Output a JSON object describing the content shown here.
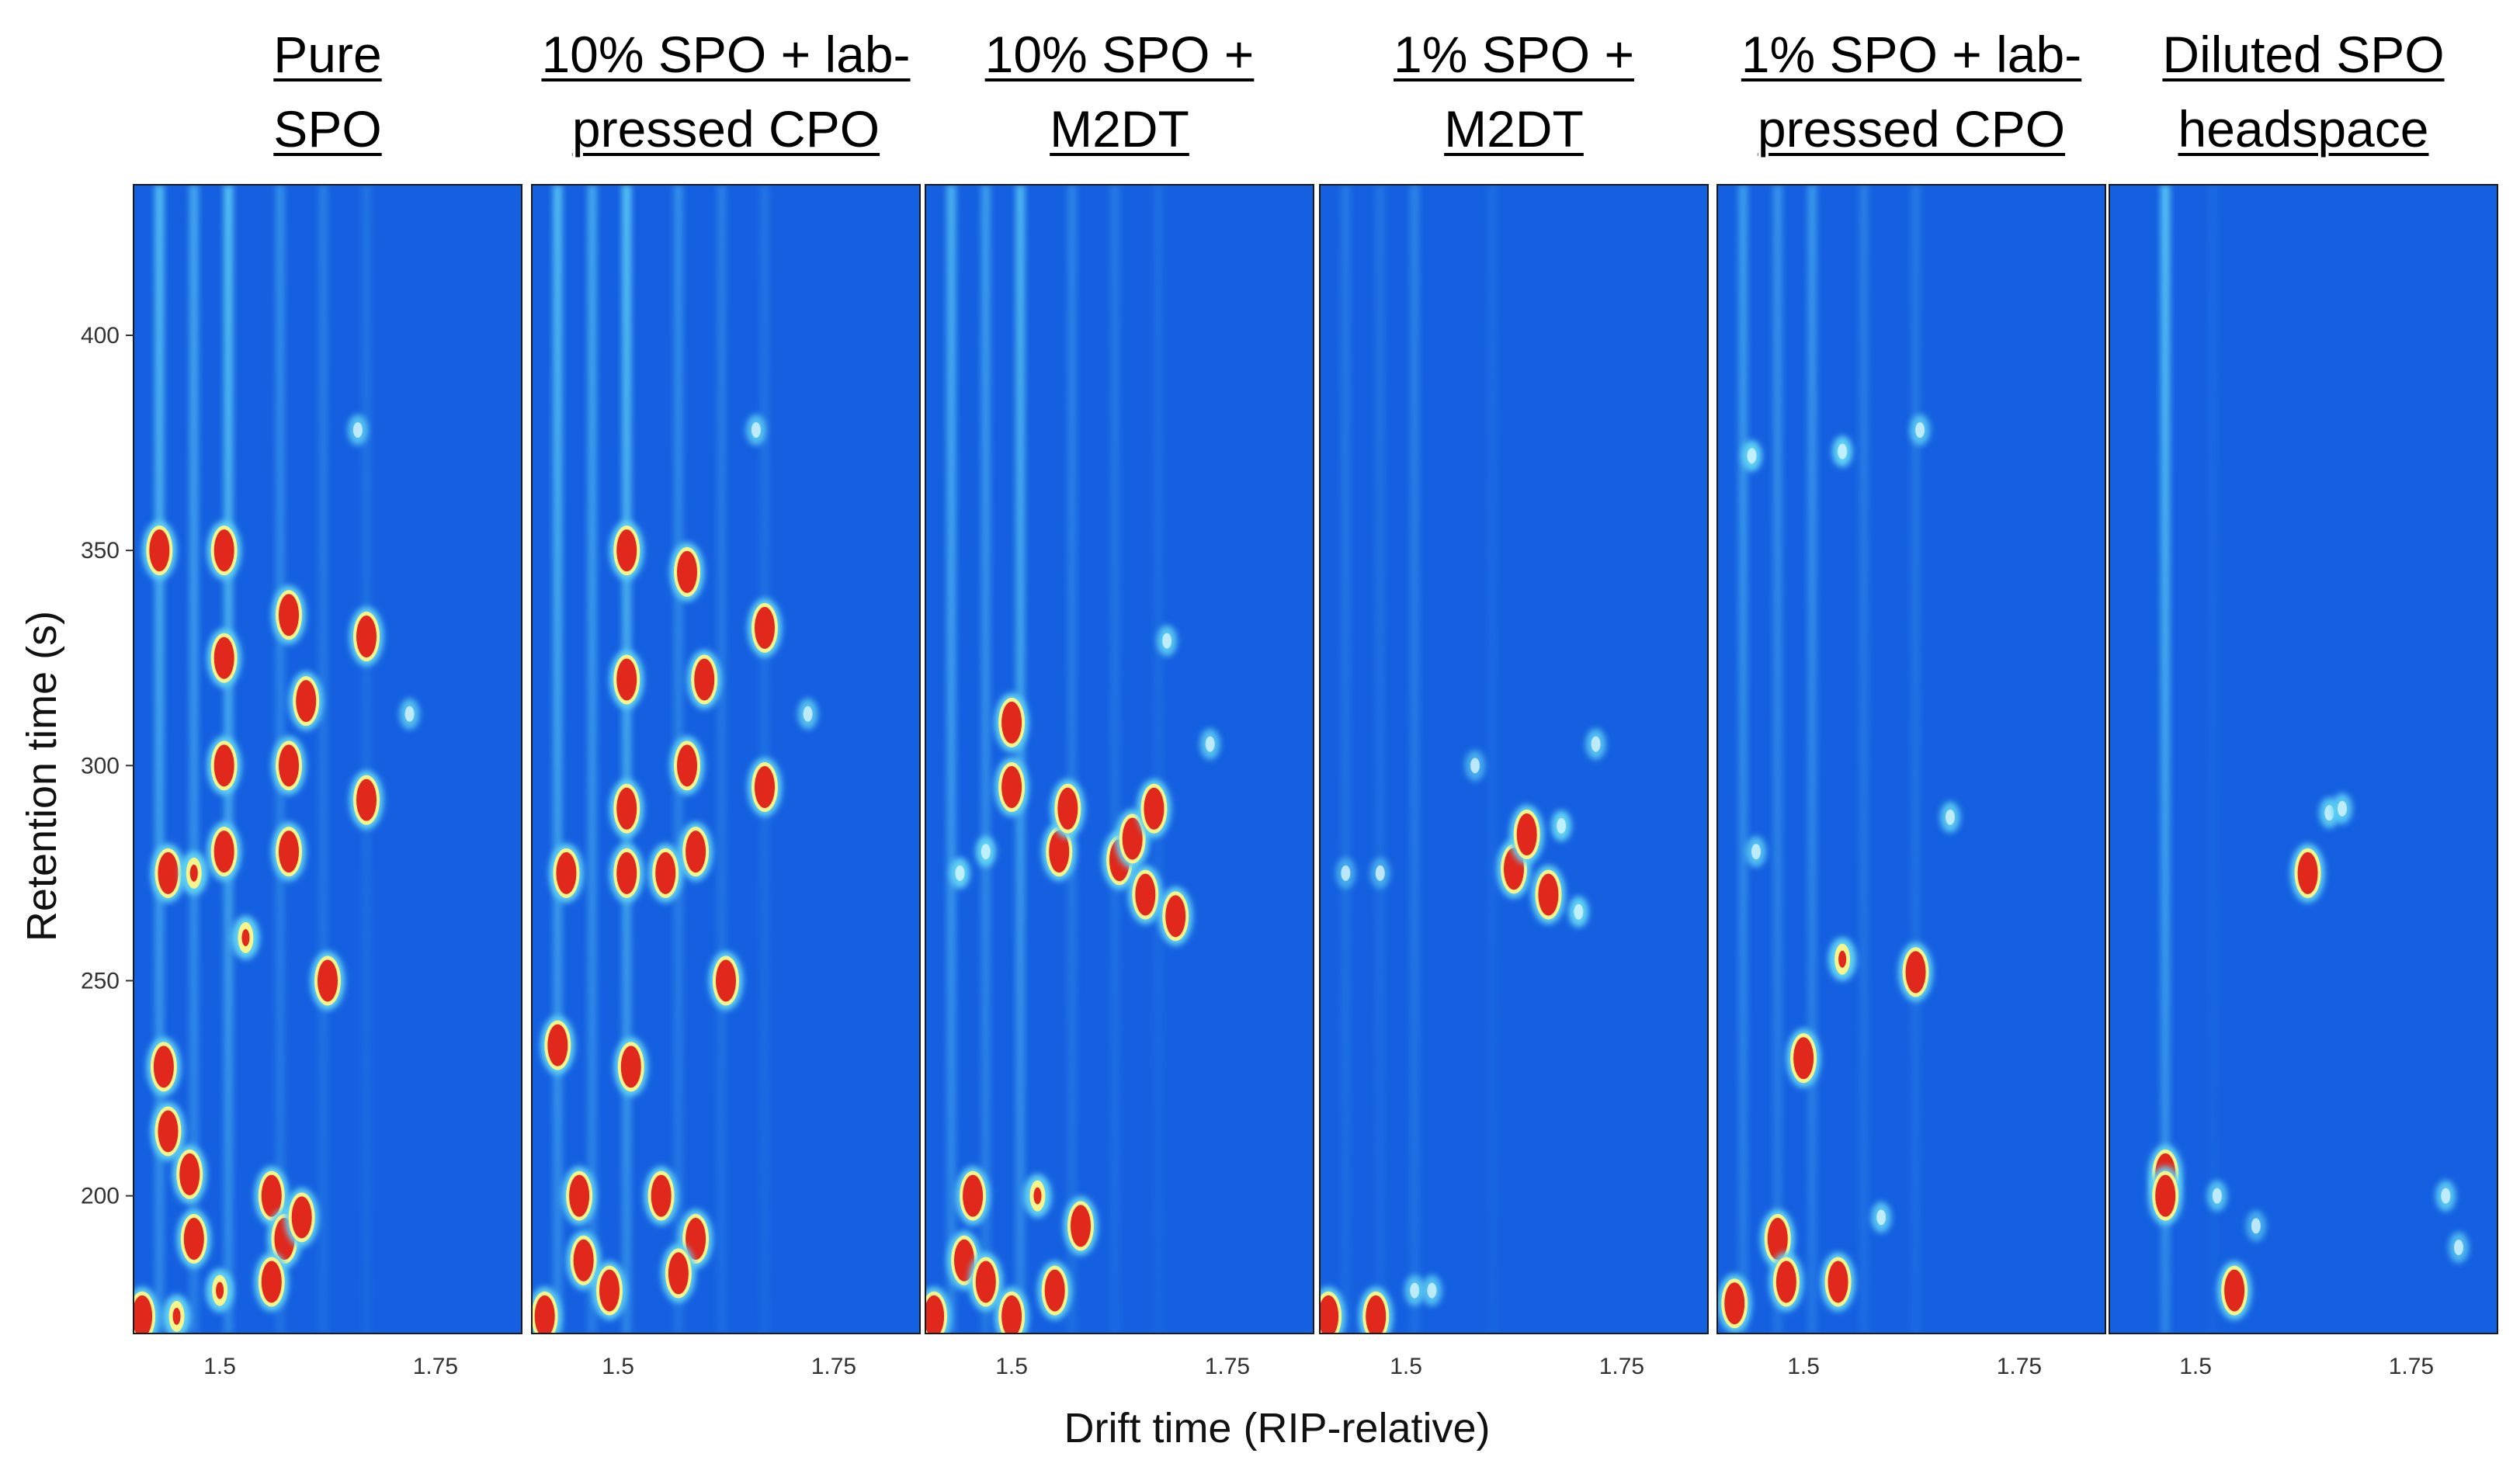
{
  "chart_data": {
    "type": "heatmap",
    "xlabel": "Drift time (RIP-relative)",
    "ylabel": "Retention time (s)",
    "xlim": [
      1.4,
      1.85
    ],
    "ylim": [
      168,
      435
    ],
    "x_ticks": [
      1.5,
      1.75
    ],
    "x_tick_labels": [
      "1.5",
      "1.75"
    ],
    "y_ticks": [
      200,
      250,
      300,
      350,
      400
    ],
    "y_tick_labels": [
      "200",
      "250",
      "300",
      "350",
      "400"
    ],
    "colors": {
      "background": "#1560e0",
      "low": "#5fd2f5",
      "mid": "#f5f58c",
      "high": "#e0281c"
    },
    "panels": [
      {
        "title_lines": [
          "Pure",
          "SPO"
        ],
        "streaks": [
          [
            1.43,
            0.9
          ],
          [
            1.47,
            0.7
          ],
          [
            1.51,
            0.95
          ],
          [
            1.57,
            0.45
          ],
          [
            1.62,
            0.3
          ],
          [
            1.67,
            0.2
          ]
        ],
        "spots": [
          {
            "x": 1.505,
            "y": 300,
            "i": 3
          },
          {
            "x": 1.505,
            "y": 280,
            "i": 3
          },
          {
            "x": 1.505,
            "y": 325,
            "i": 3
          },
          {
            "x": 1.505,
            "y": 350,
            "i": 2.5
          },
          {
            "x": 1.58,
            "y": 300,
            "i": 3
          },
          {
            "x": 1.58,
            "y": 335,
            "i": 3
          },
          {
            "x": 1.58,
            "y": 280,
            "i": 3
          },
          {
            "x": 1.6,
            "y": 315,
            "i": 2.5
          },
          {
            "x": 1.67,
            "y": 330,
            "i": 3
          },
          {
            "x": 1.67,
            "y": 292,
            "i": 3
          },
          {
            "x": 1.72,
            "y": 312,
            "i": 1.5
          },
          {
            "x": 1.66,
            "y": 378,
            "i": 1.5
          },
          {
            "x": 1.44,
            "y": 275,
            "i": 2.5
          },
          {
            "x": 1.47,
            "y": 275,
            "i": 2
          },
          {
            "x": 1.43,
            "y": 350,
            "i": 2.5
          },
          {
            "x": 1.53,
            "y": 260,
            "i": 2
          },
          {
            "x": 1.625,
            "y": 250,
            "i": 2.5
          },
          {
            "x": 1.435,
            "y": 230,
            "i": 3
          },
          {
            "x": 1.44,
            "y": 215,
            "i": 2.5
          },
          {
            "x": 1.465,
            "y": 205,
            "i": 2.5
          },
          {
            "x": 1.47,
            "y": 190,
            "i": 2.5
          },
          {
            "x": 1.56,
            "y": 200,
            "i": 3
          },
          {
            "x": 1.575,
            "y": 190,
            "i": 3
          },
          {
            "x": 1.595,
            "y": 195,
            "i": 3
          },
          {
            "x": 1.56,
            "y": 180,
            "i": 3
          },
          {
            "x": 1.41,
            "y": 172,
            "i": 3
          },
          {
            "x": 1.45,
            "y": 172,
            "i": 2
          },
          {
            "x": 1.5,
            "y": 178,
            "i": 2
          }
        ]
      },
      {
        "title_lines": [
          "10% SPO + lab-",
          "pressed CPO"
        ],
        "streaks": [
          [
            1.43,
            0.9
          ],
          [
            1.47,
            0.7
          ],
          [
            1.51,
            0.95
          ],
          [
            1.57,
            0.45
          ],
          [
            1.62,
            0.3
          ],
          [
            1.67,
            0.2
          ]
        ],
        "spots": [
          {
            "x": 1.51,
            "y": 320,
            "i": 3
          },
          {
            "x": 1.51,
            "y": 290,
            "i": 3
          },
          {
            "x": 1.51,
            "y": 275,
            "i": 3
          },
          {
            "x": 1.51,
            "y": 350,
            "i": 2.5
          },
          {
            "x": 1.515,
            "y": 230,
            "i": 3
          },
          {
            "x": 1.58,
            "y": 300,
            "i": 3
          },
          {
            "x": 1.58,
            "y": 345,
            "i": 3
          },
          {
            "x": 1.59,
            "y": 280,
            "i": 2.5
          },
          {
            "x": 1.6,
            "y": 320,
            "i": 2.5
          },
          {
            "x": 1.67,
            "y": 332,
            "i": 3
          },
          {
            "x": 1.67,
            "y": 295,
            "i": 3
          },
          {
            "x": 1.72,
            "y": 312,
            "i": 1.5
          },
          {
            "x": 1.66,
            "y": 378,
            "i": 1.5
          },
          {
            "x": 1.44,
            "y": 275,
            "i": 2.5
          },
          {
            "x": 1.555,
            "y": 275,
            "i": 2.5
          },
          {
            "x": 1.625,
            "y": 250,
            "i": 2.5
          },
          {
            "x": 1.43,
            "y": 235,
            "i": 2.5
          },
          {
            "x": 1.455,
            "y": 200,
            "i": 3
          },
          {
            "x": 1.46,
            "y": 185,
            "i": 3
          },
          {
            "x": 1.49,
            "y": 178,
            "i": 3
          },
          {
            "x": 1.55,
            "y": 200,
            "i": 2.5
          },
          {
            "x": 1.59,
            "y": 190,
            "i": 3
          },
          {
            "x": 1.57,
            "y": 182,
            "i": 3
          },
          {
            "x": 1.415,
            "y": 172,
            "i": 2.5
          }
        ]
      },
      {
        "title_lines": [
          "10% SPO +",
          "M2DT"
        ],
        "streaks": [
          [
            1.43,
            0.8
          ],
          [
            1.47,
            0.6
          ],
          [
            1.51,
            0.85
          ],
          [
            1.57,
            0.35
          ],
          [
            1.62,
            0.25
          ],
          [
            1.67,
            0.15
          ]
        ],
        "spots": [
          {
            "x": 1.5,
            "y": 295,
            "i": 3
          },
          {
            "x": 1.5,
            "y": 310,
            "i": 2.5
          },
          {
            "x": 1.555,
            "y": 280,
            "i": 3
          },
          {
            "x": 1.565,
            "y": 290,
            "i": 2.5
          },
          {
            "x": 1.625,
            "y": 278,
            "i": 3
          },
          {
            "x": 1.64,
            "y": 283,
            "i": 3
          },
          {
            "x": 1.665,
            "y": 290,
            "i": 3
          },
          {
            "x": 1.655,
            "y": 270,
            "i": 2.5
          },
          {
            "x": 1.69,
            "y": 265,
            "i": 2.5
          },
          {
            "x": 1.68,
            "y": 329,
            "i": 1.6
          },
          {
            "x": 1.73,
            "y": 305,
            "i": 1.5
          },
          {
            "x": 1.44,
            "y": 275,
            "i": 1.8
          },
          {
            "x": 1.47,
            "y": 280,
            "i": 1.8
          },
          {
            "x": 1.455,
            "y": 200,
            "i": 2.5
          },
          {
            "x": 1.445,
            "y": 185,
            "i": 3
          },
          {
            "x": 1.47,
            "y": 180,
            "i": 3
          },
          {
            "x": 1.5,
            "y": 172,
            "i": 3
          },
          {
            "x": 1.53,
            "y": 200,
            "i": 2.2
          },
          {
            "x": 1.58,
            "y": 193,
            "i": 3
          },
          {
            "x": 1.55,
            "y": 178,
            "i": 2.5
          },
          {
            "x": 1.41,
            "y": 172,
            "i": 2.5
          }
        ]
      },
      {
        "title_lines": [
          "1% SPO +",
          "M2DT"
        ],
        "streaks": [
          [
            1.43,
            0.25
          ],
          [
            1.47,
            0.2
          ],
          [
            1.51,
            0.35
          ],
          [
            1.6,
            0.12
          ]
        ],
        "spots": [
          {
            "x": 1.625,
            "y": 276,
            "i": 3
          },
          {
            "x": 1.64,
            "y": 284,
            "i": 2.6
          },
          {
            "x": 1.665,
            "y": 270,
            "i": 2.6
          },
          {
            "x": 1.68,
            "y": 286,
            "i": 1.8
          },
          {
            "x": 1.7,
            "y": 266,
            "i": 1.8
          },
          {
            "x": 1.72,
            "y": 305,
            "i": 1.5
          },
          {
            "x": 1.58,
            "y": 300,
            "i": 1.2
          },
          {
            "x": 1.43,
            "y": 275,
            "i": 1.1
          },
          {
            "x": 1.47,
            "y": 275,
            "i": 1.1
          },
          {
            "x": 1.41,
            "y": 172,
            "i": 2.5
          },
          {
            "x": 1.465,
            "y": 172,
            "i": 2.8
          },
          {
            "x": 1.51,
            "y": 178,
            "i": 1.5
          },
          {
            "x": 1.53,
            "y": 178,
            "i": 1.5
          }
        ]
      },
      {
        "title_lines": [
          "1% SPO + lab-",
          "pressed CPO"
        ],
        "streaks": [
          [
            1.43,
            0.6
          ],
          [
            1.47,
            0.5
          ],
          [
            1.51,
            0.55
          ],
          [
            1.57,
            0.3
          ],
          [
            1.63,
            0.25
          ]
        ],
        "spots": [
          {
            "x": 1.5,
            "y": 232,
            "i": 3
          },
          {
            "x": 1.63,
            "y": 252,
            "i": 2.8
          },
          {
            "x": 1.545,
            "y": 255,
            "i": 2
          },
          {
            "x": 1.44,
            "y": 372,
            "i": 1.8
          },
          {
            "x": 1.545,
            "y": 373,
            "i": 1.8
          },
          {
            "x": 1.635,
            "y": 378,
            "i": 1.5
          },
          {
            "x": 1.67,
            "y": 288,
            "i": 1.6
          },
          {
            "x": 1.445,
            "y": 280,
            "i": 1.5
          },
          {
            "x": 1.47,
            "y": 190,
            "i": 3
          },
          {
            "x": 1.48,
            "y": 180,
            "i": 3
          },
          {
            "x": 1.54,
            "y": 180,
            "i": 3
          },
          {
            "x": 1.59,
            "y": 195,
            "i": 1.6
          },
          {
            "x": 1.42,
            "y": 175,
            "i": 2.5
          }
        ]
      },
      {
        "title_lines": [
          "Diluted SPO",
          "headspace"
        ],
        "streaks": [
          [
            1.465,
            0.95
          ],
          [
            1.52,
            0.1
          ]
        ],
        "spots": [
          {
            "x": 1.465,
            "y": 205,
            "i": 3
          },
          {
            "x": 1.465,
            "y": 200,
            "i": 3
          },
          {
            "x": 1.63,
            "y": 275,
            "i": 3
          },
          {
            "x": 1.655,
            "y": 289,
            "i": 1.6
          },
          {
            "x": 1.67,
            "y": 290,
            "i": 1.6
          },
          {
            "x": 1.545,
            "y": 178,
            "i": 3
          },
          {
            "x": 1.525,
            "y": 200,
            "i": 1.5
          },
          {
            "x": 1.79,
            "y": 200,
            "i": 1.6
          },
          {
            "x": 1.805,
            "y": 188,
            "i": 1.4
          },
          {
            "x": 1.57,
            "y": 193,
            "i": 1.2
          }
        ]
      }
    ]
  }
}
